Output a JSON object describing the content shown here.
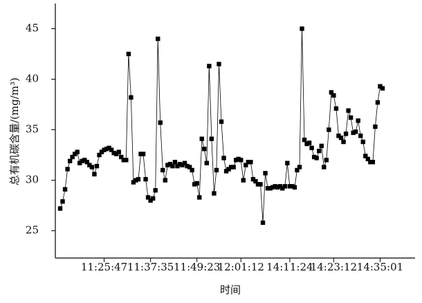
{
  "chart_data": {
    "type": "line",
    "x_label": "时间",
    "y_label": "总有机碳含量/(mg/m³)",
    "color": "#000000",
    "marker": "square",
    "ylim": [
      22.3,
      47.5
    ],
    "yticks": [
      25,
      30,
      35,
      40,
      45
    ],
    "categories": [
      null,
      null,
      null,
      null,
      null,
      null,
      null,
      null,
      null,
      null,
      null,
      null,
      null,
      null,
      null,
      null,
      null,
      null,
      "11:25:47",
      null,
      null,
      null,
      null,
      null,
      null,
      null,
      null,
      null,
      null,
      null,
      null,
      null,
      null,
      null,
      null,
      null,
      null,
      "11:37:35",
      null,
      null,
      null,
      null,
      null,
      null,
      null,
      null,
      null,
      null,
      null,
      null,
      null,
      null,
      null,
      null,
      null,
      null,
      "11:49:23",
      null,
      null,
      null,
      null,
      null,
      null,
      null,
      null,
      null,
      null,
      null,
      null,
      null,
      null,
      null,
      null,
      null,
      "12:01:12",
      null,
      null,
      null,
      null,
      null,
      null,
      null,
      null,
      null,
      null,
      null,
      null,
      null,
      null,
      null,
      null,
      null,
      null,
      null,
      "14:11:24",
      null,
      null,
      null,
      null,
      null,
      null,
      null,
      null,
      null,
      null,
      null,
      null,
      null,
      null,
      null,
      null,
      null,
      "14:23:12",
      null,
      null,
      null,
      null,
      null,
      null,
      null,
      null,
      null,
      null,
      null,
      null,
      null,
      null,
      null,
      null,
      null,
      null,
      "14:35:01",
      null
    ],
    "values": [
      27.2,
      27.9,
      29.1,
      31.1,
      31.9,
      32.3,
      32.6,
      32.8,
      31.7,
      31.9,
      32.0,
      31.8,
      31.5,
      31.3,
      30.6,
      31.4,
      32.5,
      32.8,
      33.0,
      33.1,
      33.2,
      33.0,
      32.7,
      32.6,
      32.8,
      32.3,
      32.0,
      32.0,
      42.5,
      38.2,
      29.8,
      30.0,
      30.1,
      32.6,
      32.6,
      30.1,
      28.3,
      28.0,
      28.2,
      29.0,
      44.0,
      35.7,
      31.0,
      30.0,
      31.5,
      31.6,
      31.4,
      31.8,
      31.4,
      31.6,
      31.5,
      31.7,
      31.4,
      31.3,
      31.0,
      29.6,
      29.7,
      28.3,
      34.1,
      33.1,
      31.7,
      41.3,
      34.1,
      28.7,
      31.0,
      41.5,
      35.8,
      32.2,
      30.9,
      31.1,
      31.3,
      31.3,
      32.0,
      32.1,
      32.0,
      30.0,
      31.5,
      31.8,
      31.8,
      30.1,
      29.9,
      29.6,
      29.6,
      25.8,
      30.7,
      29.2,
      29.2,
      29.3,
      29.4,
      29.3,
      29.4,
      29.2,
      29.4,
      31.7,
      29.4,
      29.4,
      29.3,
      31.0,
      31.3,
      45.0,
      34.0,
      33.6,
      33.7,
      33.2,
      32.3,
      32.2,
      32.9,
      33.4,
      31.3,
      32.0,
      35.0,
      38.7,
      38.4,
      37.1,
      34.4,
      34.2,
      33.8,
      34.6,
      36.9,
      36.2,
      34.7,
      34.8,
      35.9,
      34.4,
      33.8,
      32.4,
      32.1,
      31.8,
      31.8,
      35.3,
      37.7,
      39.3,
      39.1
    ]
  }
}
